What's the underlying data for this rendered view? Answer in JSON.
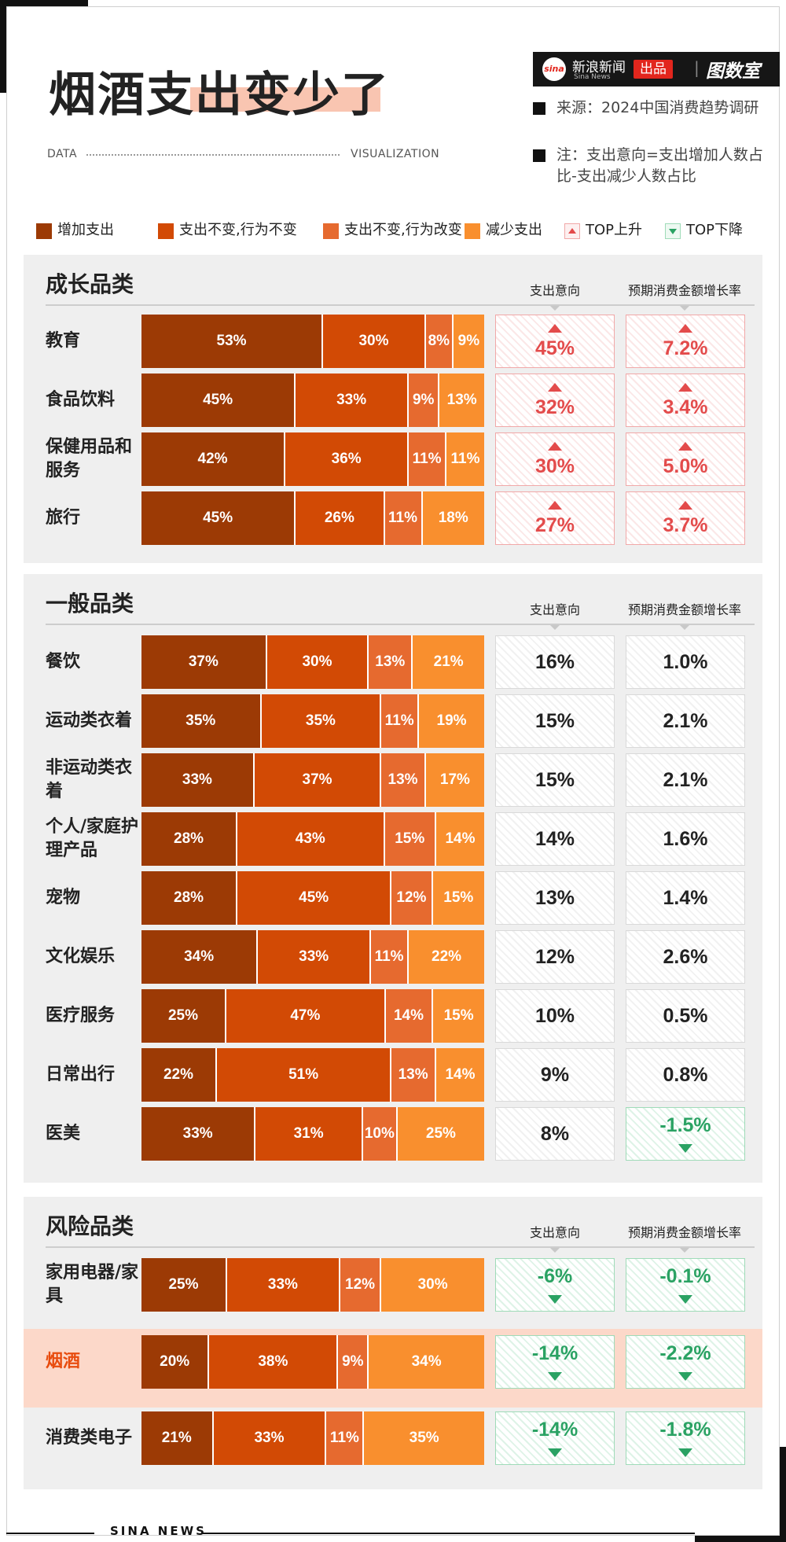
{
  "header": {
    "title": "烟酒支出变少了",
    "data_label": "DATA",
    "viz_label": "VISUALIZATION",
    "brand": {
      "logo": "sina",
      "name": "新浪新闻",
      "name_en": "Sina News",
      "produced": "出品",
      "studio": "图数室"
    },
    "notes": [
      "来源：2024中国消费趋势调研",
      "注：支出意向=支出增加人数占比-支出减少人数占比"
    ]
  },
  "legend": [
    {
      "label": "增加支出",
      "color": "#9c3a05"
    },
    {
      "label": "支出不变,行为不变",
      "color": "#d24a05"
    },
    {
      "label": "支出不变,行为改变",
      "color": "#e66a2f"
    },
    {
      "label": "减少支出",
      "color": "#f98f2e"
    },
    {
      "label": "TOP上升",
      "marker": "up"
    },
    {
      "label": "TOP下降",
      "marker": "down"
    }
  ],
  "columns": {
    "intent": "支出意向",
    "growth": "预期消费金额增长率"
  },
  "sections": [
    {
      "title": "成长品类",
      "rows": [
        {
          "label": "教育",
          "values": [
            53,
            30,
            8,
            9
          ],
          "intent": "45%",
          "growth": "7.2%",
          "intent_trend": "up",
          "growth_trend": "up"
        },
        {
          "label": "食品饮料",
          "values": [
            45,
            33,
            9,
            13
          ],
          "intent": "32%",
          "growth": "3.4%",
          "intent_trend": "up",
          "growth_trend": "up"
        },
        {
          "label": "保健用品和服务",
          "values": [
            42,
            36,
            11,
            11
          ],
          "intent": "30%",
          "growth": "5.0%",
          "intent_trend": "up",
          "growth_trend": "up"
        },
        {
          "label": "旅行",
          "values": [
            45,
            26,
            11,
            18
          ],
          "intent": "27%",
          "growth": "3.7%",
          "intent_trend": "up",
          "growth_trend": "up"
        }
      ]
    },
    {
      "title": "一般品类",
      "rows": [
        {
          "label": "餐饮",
          "values": [
            37,
            30,
            13,
            21
          ],
          "intent": "16%",
          "growth": "1.0%",
          "intent_trend": "none",
          "growth_trend": "none"
        },
        {
          "label": "运动类衣着",
          "values": [
            35,
            35,
            11,
            19
          ],
          "intent": "15%",
          "growth": "2.1%",
          "intent_trend": "none",
          "growth_trend": "none"
        },
        {
          "label": "非运动类衣着",
          "values": [
            33,
            37,
            13,
            17
          ],
          "intent": "15%",
          "growth": "2.1%",
          "intent_trend": "none",
          "growth_trend": "none"
        },
        {
          "label": "个人/家庭护理产品",
          "values": [
            28,
            43,
            15,
            14
          ],
          "intent": "14%",
          "growth": "1.6%",
          "intent_trend": "none",
          "growth_trend": "none"
        },
        {
          "label": "宠物",
          "values": [
            28,
            45,
            12,
            15
          ],
          "intent": "13%",
          "growth": "1.4%",
          "intent_trend": "none",
          "growth_trend": "none"
        },
        {
          "label": "文化娱乐",
          "values": [
            34,
            33,
            11,
            22
          ],
          "intent": "12%",
          "growth": "2.6%",
          "intent_trend": "none",
          "growth_trend": "none"
        },
        {
          "label": "医疗服务",
          "values": [
            25,
            47,
            14,
            15
          ],
          "intent": "10%",
          "growth": "0.5%",
          "intent_trend": "none",
          "growth_trend": "none"
        },
        {
          "label": "日常出行",
          "values": [
            22,
            51,
            13,
            14
          ],
          "intent": "9%",
          "growth": "0.8%",
          "intent_trend": "none",
          "growth_trend": "none"
        },
        {
          "label": "医美",
          "values": [
            33,
            31,
            10,
            25
          ],
          "intent": "8%",
          "growth": "-1.5%",
          "intent_trend": "none",
          "growth_trend": "down"
        }
      ]
    },
    {
      "title": "风险品类",
      "rows": [
        {
          "label": "家用电器/家具",
          "values": [
            25,
            33,
            12,
            30
          ],
          "intent": "-6%",
          "growth": "-0.1%",
          "intent_trend": "down",
          "growth_trend": "down"
        },
        {
          "label": "烟酒",
          "values": [
            20,
            38,
            9,
            34
          ],
          "intent": "-14%",
          "growth": "-2.2%",
          "intent_trend": "down",
          "growth_trend": "down",
          "highlight": true
        },
        {
          "label": "消费类电子",
          "values": [
            21,
            33,
            11,
            35
          ],
          "intent": "-14%",
          "growth": "-1.8%",
          "intent_trend": "down",
          "growth_trend": "down"
        }
      ]
    }
  ],
  "chart_data": {
    "type": "bar",
    "title": "烟酒支出变少了",
    "orientation": "horizontal-stacked-100",
    "categories": [
      "教育",
      "食品饮料",
      "保健用品和服务",
      "旅行",
      "餐饮",
      "运动类衣着",
      "非运动类衣着",
      "个人/家庭护理产品",
      "宠物",
      "文化娱乐",
      "医疗服务",
      "日常出行",
      "医美",
      "家用电器/家具",
      "烟酒",
      "消费类电子"
    ],
    "series": [
      {
        "name": "增加支出",
        "values": [
          53,
          45,
          42,
          45,
          37,
          35,
          33,
          28,
          28,
          34,
          25,
          22,
          33,
          25,
          20,
          21
        ]
      },
      {
        "name": "支出不变,行为不变",
        "values": [
          30,
          33,
          36,
          26,
          30,
          35,
          37,
          43,
          45,
          33,
          47,
          51,
          31,
          33,
          38,
          33
        ]
      },
      {
        "name": "支出不变,行为改变",
        "values": [
          8,
          9,
          11,
          11,
          13,
          11,
          13,
          15,
          12,
          11,
          14,
          13,
          10,
          12,
          9,
          11
        ]
      },
      {
        "name": "减少支出",
        "values": [
          9,
          13,
          11,
          18,
          21,
          19,
          17,
          14,
          15,
          22,
          15,
          14,
          25,
          30,
          34,
          35
        ]
      }
    ],
    "intent": [
      45,
      32,
      30,
      27,
      16,
      15,
      15,
      14,
      13,
      12,
      10,
      9,
      8,
      -6,
      -14,
      -14
    ],
    "growth_rate": [
      7.2,
      3.4,
      5.0,
      3.7,
      1.0,
      2.1,
      2.1,
      1.6,
      1.4,
      2.6,
      0.5,
      0.8,
      -1.5,
      -0.1,
      -2.2,
      -1.8
    ]
  },
  "footer": "SINA NEWS"
}
